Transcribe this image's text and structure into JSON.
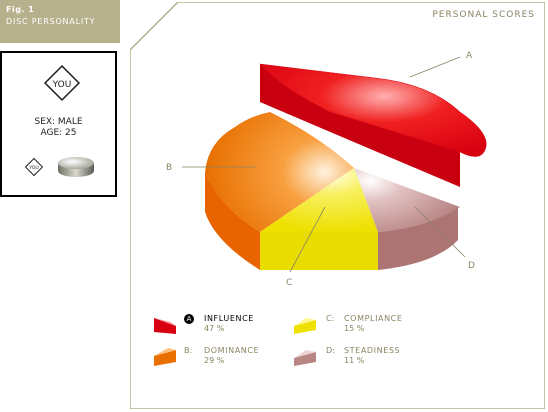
{
  "figure": {
    "number": "Fig. 1",
    "title": "DISC PERSONALITY"
  },
  "profile": {
    "badge": "YOU",
    "sex_line": "SEX: MALE",
    "age_line": "AGE: 25",
    "mini_badge": "YOU"
  },
  "panel_title": "PERSONAL SCORES",
  "colors": {
    "influence": "#e8101a",
    "dominance": "#ef7d12",
    "compliance": "#f2ea12",
    "steadiness": "#c08a8a",
    "frame": "#b7b08c"
  },
  "chart_data": {
    "type": "pie",
    "title": "PERSONAL SCORES",
    "slices": [
      {
        "key": "A",
        "label": "INFLUENCE",
        "value": 47,
        "display": "47 %",
        "exploded": true
      },
      {
        "key": "B",
        "label": "DOMINANCE",
        "value": 29,
        "display": "29 %"
      },
      {
        "key": "C",
        "label": "COMPLIANCE",
        "value": 15,
        "display": "15 %"
      },
      {
        "key": "D",
        "label": "STEADINESS",
        "value": 11,
        "display": "11 %"
      }
    ],
    "selected": "A"
  },
  "legend": [
    {
      "key": "A",
      "name": "INFLUENCE",
      "pct": "47 %"
    },
    {
      "key": "B:",
      "name": "DOMINANCE",
      "pct": "29 %"
    },
    {
      "key": "C:",
      "name": "COMPLIANCE",
      "pct": "15 %"
    },
    {
      "key": "D:",
      "name": "STEADINESS",
      "pct": "11 %"
    }
  ]
}
